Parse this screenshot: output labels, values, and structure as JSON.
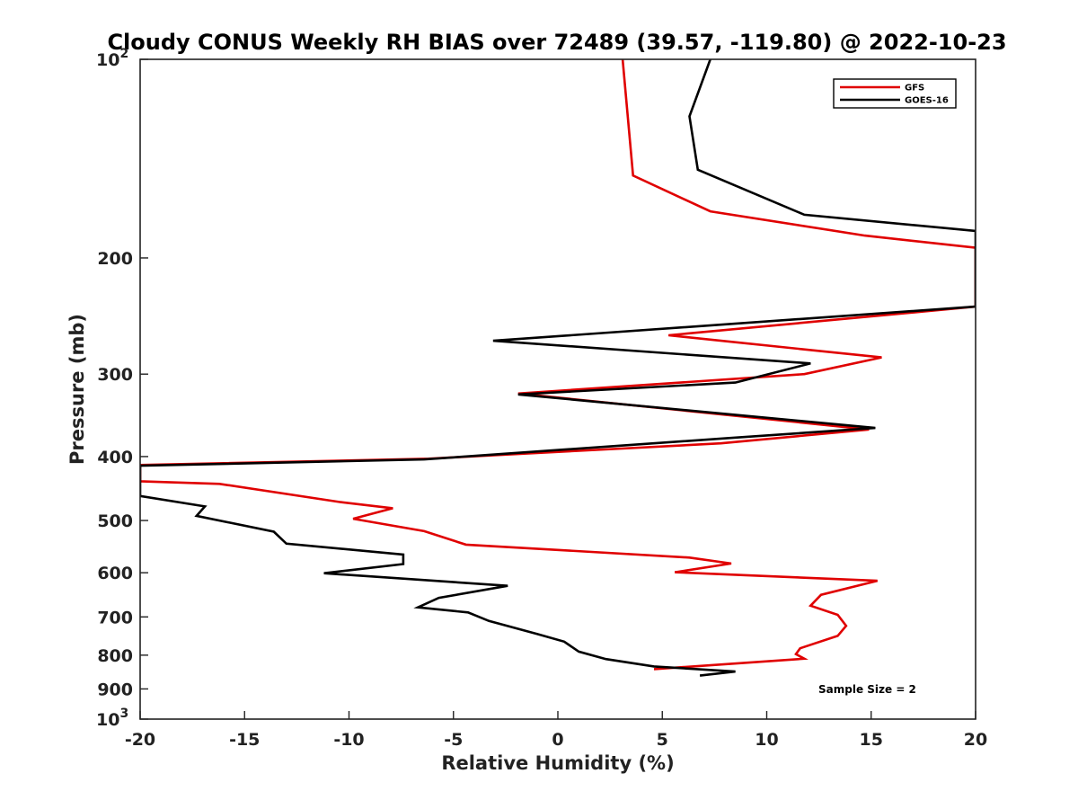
{
  "chart_data": {
    "type": "line",
    "title": "Cloudy CONUS Weekly RH BIAS over 72489 (39.57, -119.80) @ 2022-10-23",
    "xlabel": "Relative Humidity (%)",
    "ylabel": "Pressure (mb)",
    "xlim": [
      -20,
      20
    ],
    "ylim": [
      1000,
      100
    ],
    "yscale": "log",
    "y_reversed": true,
    "grid": false,
    "legend_position": "top-right",
    "x_ticks": [
      "-20",
      "-15",
      "-10",
      "-5",
      "0",
      "5",
      "10",
      "15",
      "20"
    ],
    "y_ticks": [
      {
        "value": 100,
        "base": "10",
        "exp": "2"
      },
      {
        "value": 200,
        "label": "200"
      },
      {
        "value": 300,
        "label": "300"
      },
      {
        "value": 400,
        "label": "400"
      },
      {
        "value": 500,
        "label": "500"
      },
      {
        "value": 600,
        "label": "600"
      },
      {
        "value": 700,
        "label": "700"
      },
      {
        "value": 800,
        "label": "800"
      },
      {
        "value": 900,
        "label": "900"
      },
      {
        "value": 1000,
        "base": "10",
        "exp": "3"
      }
    ],
    "annotation": "Sample Size = 2",
    "series": [
      {
        "name": "GFS",
        "color": "#e00000",
        "points": [
          [
            3.1,
            100
          ],
          [
            3.6,
            150
          ],
          [
            7.3,
            170
          ],
          [
            14.7,
            185
          ],
          [
            20,
            193
          ],
          [
            20,
            237
          ],
          [
            5.3,
            262
          ],
          [
            15.5,
            283
          ],
          [
            11.8,
            300
          ],
          [
            -1.9,
            321
          ],
          [
            14.9,
            364
          ],
          [
            7.8,
            382
          ],
          [
            -6.2,
            403
          ],
          [
            -20,
            412
          ],
          [
            -20,
            436
          ],
          [
            -16.2,
            440
          ],
          [
            -10.4,
            469
          ],
          [
            -7.9,
            479
          ],
          [
            -9.8,
            497
          ],
          [
            -6.4,
            519
          ],
          [
            -4.4,
            544
          ],
          [
            6.3,
            569
          ],
          [
            8.3,
            581
          ],
          [
            5.6,
            599
          ],
          [
            15.3,
            617
          ],
          [
            12.6,
            648
          ],
          [
            12.1,
            673
          ],
          [
            13.4,
            695
          ],
          [
            13.8,
            722
          ],
          [
            13.4,
            748
          ],
          [
            11.6,
            781
          ],
          [
            11.4,
            797
          ],
          [
            11.8,
            810
          ],
          [
            4.6,
            840
          ]
        ]
      },
      {
        "name": "GOES-16",
        "color": "#000000",
        "points": [
          [
            7.3,
            100
          ],
          [
            6.3,
            122
          ],
          [
            6.7,
            147
          ],
          [
            11.8,
            172
          ],
          [
            20,
            182
          ],
          [
            20,
            237
          ],
          [
            -3.1,
            267
          ],
          [
            12.1,
            289
          ],
          [
            8.5,
            309
          ],
          [
            -1.9,
            322
          ],
          [
            15.2,
            362
          ],
          [
            8.2,
            375
          ],
          [
            -6.4,
            404
          ],
          [
            -20,
            413
          ],
          [
            -20,
            459
          ],
          [
            -16.9,
            476
          ],
          [
            -17.3,
            492
          ],
          [
            -13.6,
            520
          ],
          [
            -13.0,
            542
          ],
          [
            -7.4,
            563
          ],
          [
            -7.4,
            582
          ],
          [
            -11.2,
            601
          ],
          [
            -2.4,
            628
          ],
          [
            -5.7,
            655
          ],
          [
            -6.7,
            677
          ],
          [
            -4.3,
            689
          ],
          [
            -3.3,
            710
          ],
          [
            -1.0,
            743
          ],
          [
            0.3,
            763
          ],
          [
            1.0,
            790
          ],
          [
            2.3,
            811
          ],
          [
            4.6,
            832
          ],
          [
            8.5,
            847
          ],
          [
            6.8,
            859
          ]
        ]
      }
    ]
  }
}
